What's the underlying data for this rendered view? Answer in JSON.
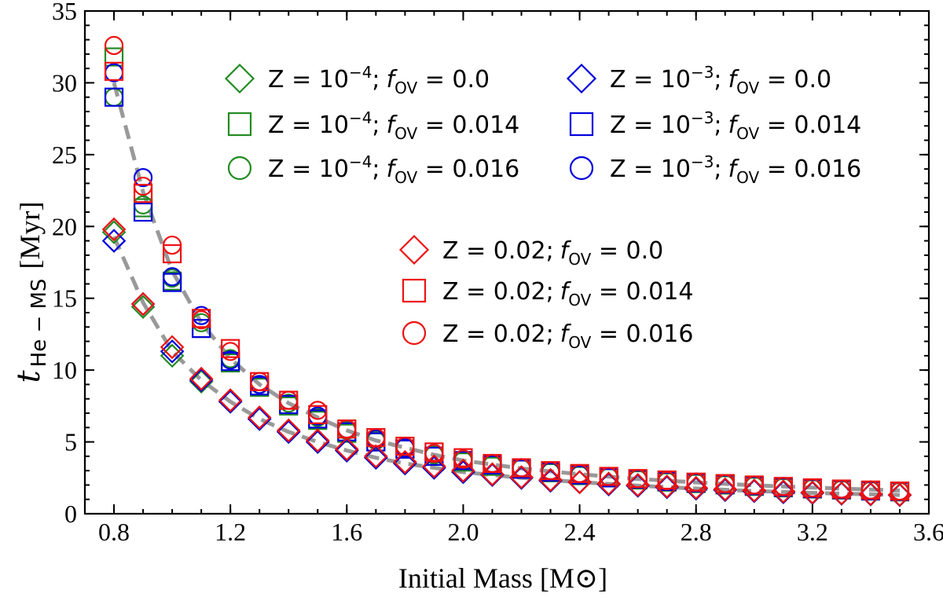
{
  "chart_data": {
    "type": "scatter",
    "xlabel": "Initial Mass [M⊙]",
    "ylabel": {
      "symbol": "t",
      "subscript": "He − MS",
      "unit": "[Myr]"
    },
    "xlim": [
      0.7,
      3.6
    ],
    "ylim": [
      0,
      35
    ],
    "xticks": [
      "0.8",
      "1.2",
      "1.6",
      "2.0",
      "2.4",
      "2.8",
      "3.2",
      "3.6"
    ],
    "yticks": [
      "0",
      "5",
      "10",
      "15",
      "20",
      "25",
      "30",
      "35"
    ],
    "masses": [
      0.8,
      0.9,
      1.0,
      1.1,
      1.2,
      1.3,
      1.4,
      1.5,
      1.6,
      1.7,
      1.8,
      1.9,
      2.0,
      2.1,
      2.2,
      2.3,
      2.4,
      2.5,
      2.6,
      2.7,
      2.8,
      2.9,
      3.0,
      3.1,
      3.2,
      3.3,
      3.4,
      3.5
    ],
    "series": [
      {
        "name": "Z=1e-4; fOV=0.0",
        "color": "#228B22",
        "marker": "diamond",
        "values": [
          19.6,
          14.4,
          11.0,
          9.2,
          7.8,
          6.6,
          5.7,
          5.0,
          4.4,
          3.9,
          3.5,
          3.2,
          2.9,
          2.7,
          2.5,
          2.3,
          2.2,
          2.05,
          1.95,
          1.85,
          1.75,
          1.65,
          1.58,
          1.5,
          1.45,
          1.4,
          1.35,
          1.3
        ]
      },
      {
        "name": "Z=1e-4; fOV=0.014",
        "color": "#228B22",
        "marker": "square",
        "values": [
          31.8,
          21.3,
          16.2,
          12.9,
          10.5,
          8.8,
          7.5,
          6.5,
          5.6,
          5.0,
          4.5,
          4.0,
          3.6,
          3.3,
          3.1,
          2.85,
          2.65,
          2.5,
          2.35,
          2.2,
          2.1,
          2.0,
          1.9,
          1.8,
          1.72,
          1.65,
          1.58,
          1.52
        ]
      },
      {
        "name": "Z=1e-4; fOV=0.016",
        "color": "#228B22",
        "marker": "circle",
        "values": [
          29.0,
          21.5,
          16.4,
          13.3,
          10.8,
          9.0,
          7.7,
          6.7,
          5.8,
          5.1,
          4.6,
          4.1,
          3.7,
          3.4,
          3.15,
          2.9,
          2.7,
          2.55,
          2.4,
          2.25,
          2.15,
          2.05,
          1.95,
          1.85,
          1.76,
          1.68,
          1.61,
          1.55
        ]
      },
      {
        "name": "Z=1e-3; fOV=0.0",
        "color": "#0000DD",
        "marker": "diamond",
        "values": [
          19.0,
          14.6,
          11.3,
          9.3,
          7.8,
          6.6,
          5.7,
          5.0,
          4.4,
          3.9,
          3.5,
          3.2,
          2.9,
          2.7,
          2.5,
          2.3,
          2.2,
          2.05,
          1.95,
          1.85,
          1.75,
          1.65,
          1.58,
          1.5,
          1.45,
          1.4,
          1.35,
          1.3
        ]
      },
      {
        "name": "Z=1e-3; fOV=0.014",
        "color": "#0000DD",
        "marker": "square",
        "values": [
          29.0,
          21.0,
          16.1,
          12.9,
          10.6,
          8.9,
          7.6,
          6.6,
          5.7,
          5.0,
          4.5,
          4.0,
          3.7,
          3.4,
          3.1,
          2.9,
          2.7,
          2.5,
          2.4,
          2.25,
          2.15,
          2.05,
          1.95,
          1.85,
          1.75,
          1.68,
          1.6,
          1.55
        ]
      },
      {
        "name": "Z=1e-3; fOV=0.016",
        "color": "#0000DD",
        "marker": "circle",
        "values": [
          30.7,
          23.4,
          16.5,
          13.8,
          10.7,
          9.0,
          7.9,
          6.8,
          5.9,
          5.2,
          4.6,
          4.2,
          3.8,
          3.5,
          3.2,
          2.95,
          2.75,
          2.6,
          2.45,
          2.3,
          2.2,
          2.1,
          2.0,
          1.9,
          1.8,
          1.72,
          1.65,
          1.58
        ]
      },
      {
        "name": "Z=0.02; fOV=0.0",
        "color": "#EE1111",
        "marker": "diamond",
        "values": [
          19.8,
          14.6,
          11.6,
          9.4,
          7.9,
          6.7,
          5.8,
          5.1,
          4.5,
          4.0,
          3.6,
          3.3,
          3.0,
          2.75,
          2.55,
          2.35,
          2.2,
          2.1,
          2.0,
          1.9,
          1.8,
          1.7,
          1.62,
          1.55,
          1.48,
          1.42,
          1.37,
          1.32
        ]
      },
      {
        "name": "Z=0.02; fOV=0.014",
        "color": "#EE1111",
        "marker": "square",
        "values": [
          30.8,
          22.3,
          18.1,
          13.6,
          11.5,
          9.2,
          7.9,
          6.9,
          5.9,
          5.3,
          4.7,
          4.3,
          3.9,
          3.5,
          3.2,
          3.0,
          2.8,
          2.6,
          2.45,
          2.35,
          2.2,
          2.1,
          2.0,
          1.9,
          1.8,
          1.72,
          1.65,
          1.58
        ]
      },
      {
        "name": "Z=0.02; fOV=0.016",
        "color": "#EE1111",
        "marker": "circle",
        "values": [
          32.6,
          22.8,
          18.7,
          13.5,
          11.3,
          9.2,
          7.9,
          7.2,
          5.9,
          5.3,
          4.7,
          4.2,
          3.8,
          3.5,
          3.2,
          3.0,
          2.8,
          2.6,
          2.45,
          2.3,
          2.2,
          2.1,
          2.0,
          1.9,
          1.8,
          1.72,
          1.65,
          1.58
        ]
      }
    ],
    "fits": [
      {
        "name": "fit-no-overshoot",
        "color": "#999999",
        "style": "dashed",
        "x": [
          0.8,
          0.9,
          1.0,
          1.1,
          1.2,
          1.3,
          1.4,
          1.5,
          1.6,
          1.7,
          1.8,
          1.9,
          2.0,
          2.2,
          2.4,
          2.6,
          2.8,
          3.0,
          3.2,
          3.4,
          3.5
        ],
        "y": [
          19.3,
          14.7,
          11.3,
          9.3,
          7.8,
          6.6,
          5.7,
          5.0,
          4.4,
          3.9,
          3.5,
          3.2,
          2.9,
          2.5,
          2.2,
          1.95,
          1.75,
          1.58,
          1.45,
          1.35,
          1.3
        ]
      },
      {
        "name": "fit-overshoot",
        "color": "#999999",
        "style": "dashed",
        "x": [
          0.8,
          0.9,
          1.0,
          1.1,
          1.2,
          1.3,
          1.4,
          1.5,
          1.6,
          1.7,
          1.8,
          1.9,
          2.0,
          2.2,
          2.4,
          2.6,
          2.8,
          3.0,
          3.2,
          3.4,
          3.5
        ],
        "y": [
          30.0,
          22.4,
          16.9,
          13.3,
          10.8,
          9.0,
          7.7,
          6.7,
          5.8,
          5.1,
          4.6,
          4.1,
          3.7,
          3.15,
          2.75,
          2.42,
          2.18,
          1.98,
          1.82,
          1.68,
          1.62
        ]
      }
    ],
    "legend": [
      {
        "marker": "diamond",
        "color": "#228B22",
        "z": "Z = 10",
        "zexp": "−4",
        "zsuffix": ";",
        "f": "f",
        "fsub": "OV",
        "fval": " = 0.0"
      },
      {
        "marker": "square",
        "color": "#228B22",
        "z": "Z = 10",
        "zexp": "−4",
        "zsuffix": ";",
        "f": "f",
        "fsub": "OV",
        "fval": " = 0.014"
      },
      {
        "marker": "circle",
        "color": "#228B22",
        "z": "Z = 10",
        "zexp": "−4",
        "zsuffix": ";",
        "f": "f",
        "fsub": "OV",
        "fval": " = 0.016"
      },
      {
        "marker": "diamond",
        "color": "#0000DD",
        "z": "Z = 10",
        "zexp": "−3",
        "zsuffix": ";",
        "f": "f",
        "fsub": "OV",
        "fval": " = 0.0"
      },
      {
        "marker": "square",
        "color": "#0000DD",
        "z": "Z = 10",
        "zexp": "−3",
        "zsuffix": ";",
        "f": "f",
        "fsub": "OV",
        "fval": " = 0.014"
      },
      {
        "marker": "circle",
        "color": "#0000DD",
        "z": "Z = 10",
        "zexp": "−3",
        "zsuffix": ";",
        "f": "f",
        "fsub": "OV",
        "fval": " = 0.016"
      },
      {
        "marker": "diamond",
        "color": "#EE1111",
        "z": "Z = 0.02",
        "zexp": "",
        "zsuffix": ";",
        "f": "f",
        "fsub": "OV",
        "fval": " = 0.0"
      },
      {
        "marker": "square",
        "color": "#EE1111",
        "z": "Z = 0.02",
        "zexp": "",
        "zsuffix": ";",
        "f": "f",
        "fsub": "OV",
        "fval": " = 0.014"
      },
      {
        "marker": "circle",
        "color": "#EE1111",
        "z": "Z = 0.02",
        "zexp": "",
        "zsuffix": ";",
        "f": "f",
        "fsub": "OV",
        "fval": " = 0.016"
      }
    ]
  }
}
